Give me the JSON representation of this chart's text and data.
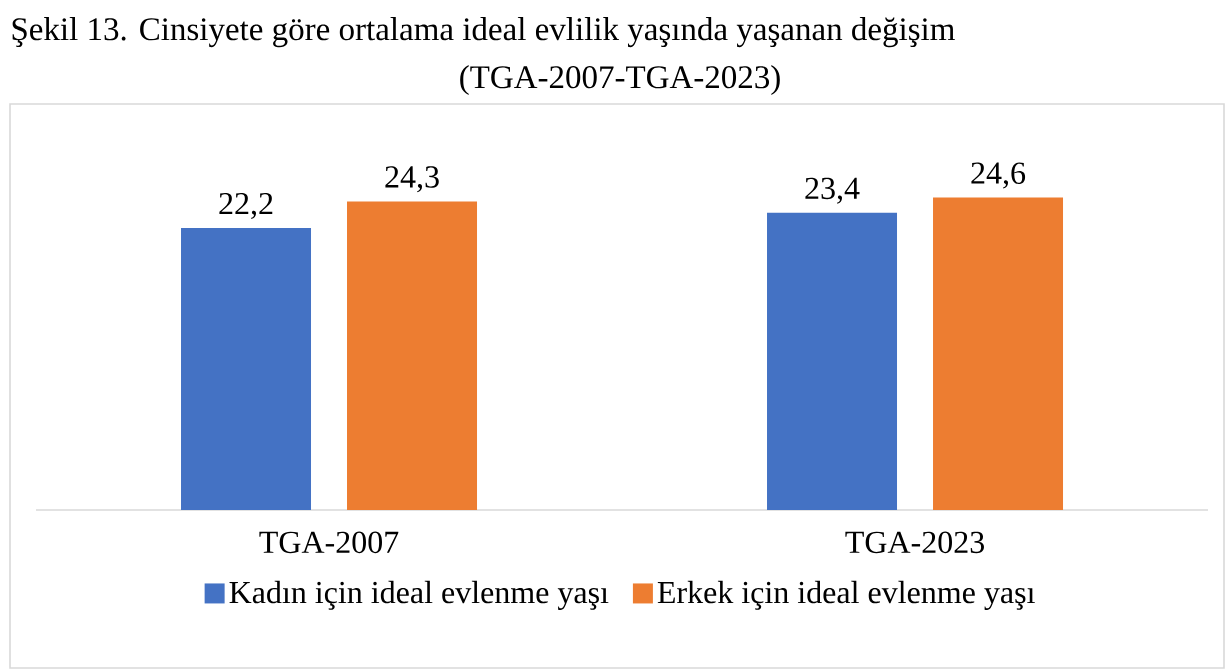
{
  "chart_data": {
    "type": "bar",
    "title": "Şekil 13. Cinsiyete göre ortalama ideal evlilik yaşında yaşanan değişim",
    "subtitle": "(TGA-2007-TGA-2023)",
    "categories": [
      "TGA-2007",
      "TGA-2023"
    ],
    "series": [
      {
        "name": "Kadın için ideal evlenme yaşı",
        "color": "#4472c4",
        "values": [
          22.2,
          23.4
        ],
        "value_labels": [
          "22,2",
          "23,4"
        ]
      },
      {
        "name": "Erkek için ideal evlenme yaşı",
        "color": "#ed7d31",
        "values": [
          24.3,
          24.6
        ],
        "value_labels": [
          "24,3",
          "24,6"
        ]
      }
    ],
    "tick_labels": "x",
    "legend": "bottom"
  }
}
